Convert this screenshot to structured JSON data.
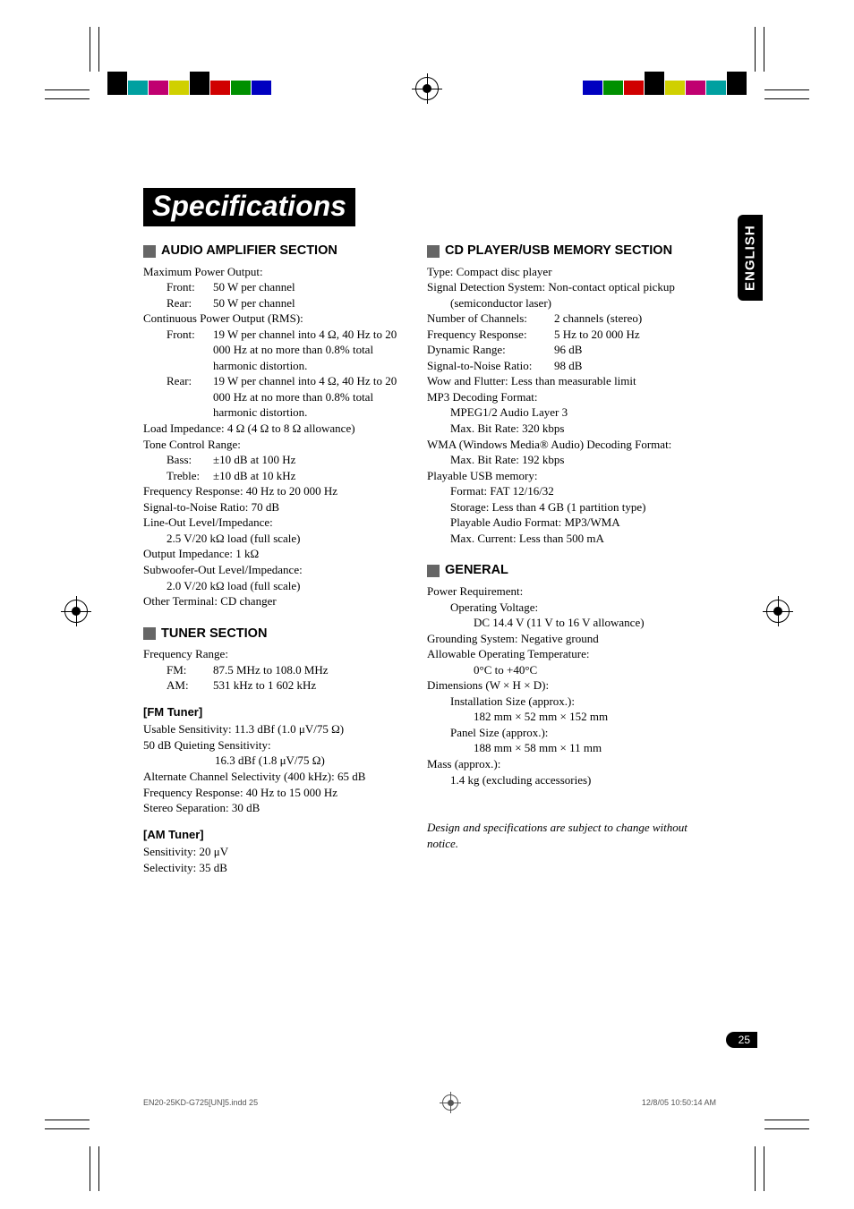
{
  "title": "Specifications",
  "sideTab": "ENGLISH",
  "pageNumber": "25",
  "footer": {
    "left": "EN20-25KD-G725[UN]5.indd   25",
    "right": "12/8/05   10:50:14 AM"
  },
  "colors": {
    "cropBars": [
      "#000000",
      "#00a0a0",
      "#c00070",
      "#d0d000",
      "#000000",
      "#d00000",
      "#009000",
      "#0000c0"
    ],
    "cropBarHeights": [
      26,
      16,
      16,
      16,
      26,
      16,
      16,
      16
    ],
    "sectionSquare": "#666666",
    "background": "#ffffff"
  },
  "sections": {
    "amp": {
      "head": "AUDIO AMPLIFIER SECTION",
      "l1": "Maximum Power Output:",
      "l2a": "Front:",
      "l2b": "50 W per channel",
      "l3a": "Rear:",
      "l3b": "50 W per channel",
      "l4": "Continuous Power Output (RMS):",
      "l5a": "Front:",
      "l5b": "19 W per channel into 4 Ω, 40 Hz to 20 000 Hz at no more than 0.8% total harmonic distortion.",
      "l6a": "Rear:",
      "l6b": "19 W per channel into 4 Ω, 40 Hz to 20 000 Hz at no more than 0.8% total harmonic distortion.",
      "l7": "Load Impedance: 4 Ω (4 Ω to 8 Ω allowance)",
      "l8": "Tone Control Range:",
      "l9a": "Bass:",
      "l9b": "±10 dB at 100 Hz",
      "l10a": "Treble:",
      "l10b": "±10 dB at 10 kHz",
      "l11": "Frequency Response: 40 Hz to 20 000 Hz",
      "l12": "Signal-to-Noise Ratio: 70 dB",
      "l13": "Line-Out Level/Impedance:",
      "l14": "2.5 V/20 kΩ load (full scale)",
      "l15": "Output Impedance: 1 kΩ",
      "l16": "Subwoofer-Out Level/Impedance:",
      "l17": "2.0 V/20 kΩ load (full scale)",
      "l18": "Other Terminal: CD changer"
    },
    "tuner": {
      "head": "TUNER SECTION",
      "l1": "Frequency Range:",
      "l2a": "FM:",
      "l2b": "87.5 MHz to 108.0 MHz",
      "l3a": "AM:",
      "l3b": "531 kHz to 1 602 kHz",
      "fmHead": "[FM Tuner]",
      "fm1": "Usable Sensitivity: 11.3 dBf (1.0 μV/75 Ω)",
      "fm2": "50 dB Quieting Sensitivity:",
      "fm3": "16.3 dBf (1.8 μV/75 Ω)",
      "fm4": "Alternate Channel Selectivity (400 kHz): 65 dB",
      "fm5": "Frequency Response: 40 Hz to 15 000 Hz",
      "fm6": "Stereo Separation: 30 dB",
      "amHead": "[AM Tuner]",
      "am1": "Sensitivity: 20 μV",
      "am2": "Selectivity: 35 dB"
    },
    "cd": {
      "head": "CD PLAYER/USB MEMORY SECTION",
      "l1": "Type: Compact disc player",
      "l2": "Signal Detection System: Non-contact optical pickup (semiconductor laser)",
      "l3a": "Number of Channels:",
      "l3b": "2 channels (stereo)",
      "l4a": "Frequency Response:",
      "l4b": "5 Hz to 20 000 Hz",
      "l5a": "Dynamic Range:",
      "l5b": "96 dB",
      "l6a": "Signal-to-Noise Ratio:",
      "l6b": "98 dB",
      "l7": "Wow and Flutter: Less than measurable limit",
      "l8": "MP3 Decoding Format:",
      "l9": "MPEG1/2 Audio Layer 3",
      "l10": "Max. Bit Rate: 320 kbps",
      "l11": "WMA (Windows Media® Audio) Decoding Format:",
      "l12": "Max. Bit Rate: 192 kbps",
      "l13": "Playable USB memory:",
      "l14": "Format: FAT 12/16/32",
      "l15": "Storage: Less than 4 GB (1 partition type)",
      "l16": "Playable Audio Format: MP3/WMA",
      "l17": "Max. Current: Less than 500 mA"
    },
    "general": {
      "head": "GENERAL",
      "l1": "Power Requirement:",
      "l2": "Operating Voltage:",
      "l3": "DC 14.4 V (11 V to 16 V allowance)",
      "l4": "Grounding System: Negative ground",
      "l5": "Allowable Operating Temperature:",
      "l6": "0°C to +40°C",
      "l7": "Dimensions (W × H × D):",
      "l8": "Installation Size (approx.):",
      "l9": "182 mm × 52 mm × 152 mm",
      "l10": "Panel Size (approx.):",
      "l11": "188 mm × 58 mm × 11 mm",
      "l12": "Mass (approx.):",
      "l13": "1.4 kg (excluding accessories)"
    },
    "notice": "Design and specifications are subject to change without notice."
  }
}
